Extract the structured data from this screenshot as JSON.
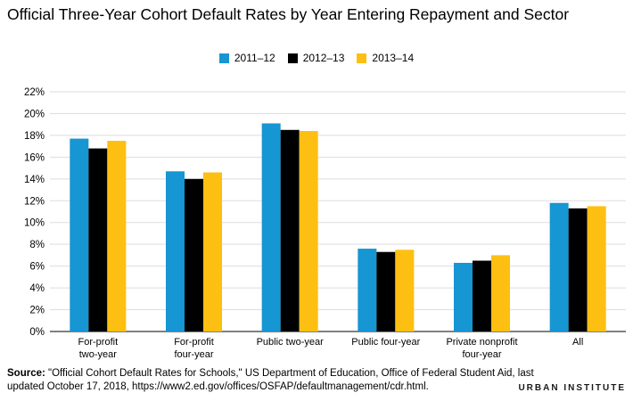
{
  "title": "Official Three-Year Cohort Default Rates by Year Entering Repayment and Sector",
  "source_label": "Source:",
  "source_text": " \"Official Cohort Default Rates for Schools,\" US Department of Education, Office of Federal Student Aid, last updated October 17, 2018, https://www2.ed.gov/offices/OSFAP/defaultmanagement/cdr.html.",
  "brand": "URBAN INSTITUTE",
  "chart_data": {
    "type": "bar",
    "categories": [
      "For-profit\ntwo-year",
      "For-profit\nfour-year",
      "Public two-year",
      "Public four-year",
      "Private nonprofit\nfour-year",
      "All"
    ],
    "series": [
      {
        "name": "2011–12",
        "color": "#1696d2",
        "values": [
          17.7,
          14.7,
          19.1,
          7.6,
          6.3,
          11.8
        ]
      },
      {
        "name": "2012–13",
        "color": "#000000",
        "values": [
          16.8,
          14.0,
          18.5,
          7.3,
          6.5,
          11.3
        ]
      },
      {
        "name": "2013–14",
        "color": "#fdbf11",
        "values": [
          17.5,
          14.6,
          18.4,
          7.5,
          7.0,
          11.5
        ]
      }
    ],
    "ylim": [
      0,
      22
    ],
    "yticks": [
      "0%",
      "2%",
      "4%",
      "6%",
      "8%",
      "10%",
      "12%",
      "14%",
      "16%",
      "18%",
      "20%",
      "22%"
    ],
    "grid": true,
    "legend_position": "top-center"
  }
}
